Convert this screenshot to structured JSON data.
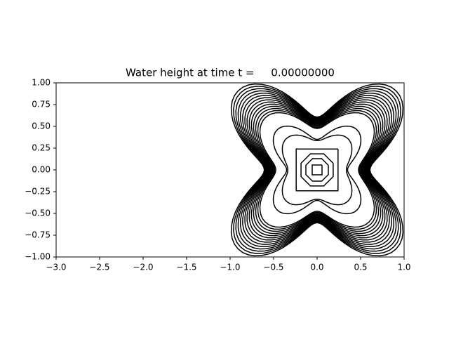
{
  "chart_data": {
    "type": "contour",
    "title": "Water height at time t =     0.00000000",
    "xlim": [
      -3,
      1
    ],
    "ylim": [
      -1,
      1
    ],
    "xticks": [
      {
        "value": -3,
        "label": "−3.0"
      },
      {
        "value": -2.5,
        "label": "−2.5"
      },
      {
        "value": -2,
        "label": "−2.0"
      },
      {
        "value": -1.5,
        "label": "−1.5"
      },
      {
        "value": -1,
        "label": "−1.0"
      },
      {
        "value": -0.5,
        "label": "−0.5"
      },
      {
        "value": 0,
        "label": "0.0"
      },
      {
        "value": 0.5,
        "label": "0.5"
      },
      {
        "value": 1,
        "label": "1.0"
      }
    ],
    "yticks": [
      {
        "value": -1,
        "label": "−1.00"
      },
      {
        "value": -0.75,
        "label": "−0.75"
      },
      {
        "value": -0.5,
        "label": "−0.50"
      },
      {
        "value": -0.25,
        "label": "−0.25"
      },
      {
        "value": 0,
        "label": "0.00"
      },
      {
        "value": 0.25,
        "label": "0.25"
      },
      {
        "value": 0.5,
        "label": "0.50"
      },
      {
        "value": 0.75,
        "label": "0.75"
      },
      {
        "value": 1,
        "label": "1.00"
      }
    ],
    "color": "#000000",
    "grid": false
  }
}
